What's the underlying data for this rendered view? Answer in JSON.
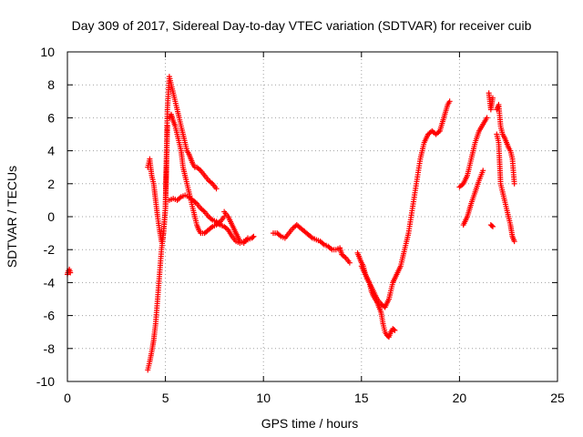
{
  "chart_data": {
    "type": "scatter",
    "title": "Day 309 of 2017, Sidereal Day-to-day VTEC variation (SDTVAR) for receiver cuib",
    "xlabel": "GPS time / hours",
    "ylabel": "SDTVAR / TECUs",
    "xlim": [
      0,
      25
    ],
    "ylim": [
      -10,
      10
    ],
    "xticks": [
      0,
      5,
      10,
      15,
      20,
      25
    ],
    "yticks": [
      -10,
      -8,
      -6,
      -4,
      -2,
      0,
      2,
      4,
      6,
      8,
      10
    ],
    "xtick_labels": [
      "0",
      "5",
      "10",
      "15",
      "20",
      "25"
    ],
    "ytick_labels": [
      "-10",
      "-8",
      "-6",
      "-4",
      "-2",
      "0",
      "2",
      "4",
      "6",
      "8",
      "10"
    ],
    "grid": true,
    "marker": "+",
    "color": "#ff0000",
    "series": [
      {
        "name": "s0",
        "x": [
          0.0,
          0.05,
          0.1,
          0.15
        ],
        "y": [
          -3.5,
          -3.3,
          -3.2,
          -3.4
        ]
      },
      {
        "name": "s1",
        "x": [
          4.1,
          4.2,
          4.3,
          4.4,
          4.5,
          4.6,
          4.7,
          4.8,
          4.9,
          5.0,
          5.1,
          5.2,
          5.3,
          5.4,
          5.5,
          5.6,
          5.7,
          5.8,
          5.9,
          6.0,
          6.1,
          6.2,
          6.3,
          6.4,
          6.5,
          6.6,
          6.8,
          7.0,
          7.2,
          7.4,
          7.6
        ],
        "y": [
          3.0,
          3.5,
          2.5,
          2.0,
          1.0,
          0.0,
          -0.8,
          -1.5,
          -1.0,
          0.5,
          6.5,
          8.5,
          8.0,
          7.5,
          7.0,
          6.5,
          6.0,
          5.5,
          5.0,
          4.5,
          4.0,
          3.8,
          3.5,
          3.2,
          3.0,
          3.0,
          2.8,
          2.5,
          2.2,
          2.0,
          1.7
        ]
      },
      {
        "name": "s2",
        "x": [
          4.1,
          4.2,
          4.3,
          4.4,
          4.5,
          4.6,
          4.7,
          4.8,
          4.9,
          5.0,
          5.05,
          5.1
        ],
        "y": [
          -9.3,
          -8.8,
          -8.2,
          -7.5,
          -6.5,
          -5.0,
          -3.5,
          -2.0,
          -1.0,
          0.5,
          3.0,
          5.5
        ]
      },
      {
        "name": "s3",
        "x": [
          5.2,
          5.3,
          5.4,
          5.5,
          5.6,
          5.7,
          5.8,
          5.9,
          6.0,
          6.1,
          6.2,
          6.3,
          6.4,
          6.5,
          6.6,
          6.7,
          6.8,
          7.0,
          7.2,
          7.4,
          7.6,
          7.8,
          8.0
        ],
        "y": [
          6.0,
          6.2,
          5.8,
          5.5,
          5.0,
          4.5,
          4.0,
          3.0,
          2.5,
          2.0,
          1.5,
          1.0,
          0.5,
          0.0,
          -0.5,
          -0.8,
          -1.0,
          -1.0,
          -0.8,
          -0.6,
          -0.5,
          -0.3,
          0.0
        ]
      },
      {
        "name": "s4",
        "x": [
          5.2,
          5.4,
          5.6,
          5.8,
          6.0,
          6.2,
          6.4,
          6.6,
          6.8,
          7.0,
          7.2,
          7.4,
          7.6,
          7.8,
          8.0,
          8.2,
          8.4,
          8.6,
          8.8,
          9.0,
          9.2,
          9.4,
          9.5
        ],
        "y": [
          1.0,
          1.1,
          1.0,
          1.2,
          1.3,
          1.2,
          1.0,
          0.8,
          0.5,
          0.3,
          0.0,
          -0.2,
          -0.3,
          -0.5,
          -0.6,
          -0.8,
          -1.2,
          -1.5,
          -1.6,
          -1.5,
          -1.4,
          -1.3,
          -1.2
        ]
      },
      {
        "name": "s5",
        "x": [
          8.0,
          8.2,
          8.4,
          8.6,
          8.8,
          9.0,
          9.2
        ],
        "y": [
          0.3,
          0.0,
          -0.5,
          -1.0,
          -1.5,
          -1.6,
          -1.3
        ]
      },
      {
        "name": "s6",
        "x": [
          10.5,
          10.7,
          10.9,
          11.1,
          11.3,
          11.5,
          11.7,
          11.9,
          12.1,
          12.3,
          12.5,
          12.7,
          12.9,
          13.1,
          13.3,
          13.5,
          13.7,
          13.9,
          14.0,
          14.2,
          14.4
        ],
        "y": [
          -1.0,
          -1.0,
          -1.2,
          -1.3,
          -1.0,
          -0.7,
          -0.5,
          -0.7,
          -0.9,
          -1.1,
          -1.3,
          -1.4,
          -1.5,
          -1.7,
          -1.8,
          -2.0,
          -2.0,
          -1.9,
          -2.3,
          -2.5,
          -2.8
        ]
      },
      {
        "name": "s7",
        "x": [
          14.8,
          14.9,
          15.0,
          15.1,
          15.2,
          15.3,
          15.4,
          15.5,
          15.6,
          15.7,
          15.8,
          15.9,
          16.0,
          16.1,
          16.2,
          16.3,
          16.4,
          16.5,
          16.6,
          16.7
        ],
        "y": [
          -2.2,
          -2.5,
          -2.8,
          -3.0,
          -3.5,
          -3.8,
          -4.0,
          -4.5,
          -4.8,
          -5.0,
          -5.2,
          -5.5,
          -5.8,
          -6.5,
          -7.0,
          -7.2,
          -7.3,
          -7.0,
          -6.8,
          -6.9
        ]
      },
      {
        "name": "s8",
        "x": [
          15.0,
          15.2,
          15.4,
          15.6,
          15.8,
          16.0,
          16.2,
          16.4,
          16.6,
          16.8,
          17.0,
          17.2,
          17.4,
          17.6,
          17.8,
          18.0,
          18.2,
          18.4,
          18.6,
          18.8,
          19.0,
          19.2,
          19.4,
          19.5
        ],
        "y": [
          -3.0,
          -3.5,
          -4.0,
          -4.5,
          -5.0,
          -5.3,
          -5.5,
          -5.0,
          -4.0,
          -3.5,
          -3.0,
          -2.0,
          -1.0,
          0.5,
          2.0,
          3.5,
          4.5,
          5.0,
          5.2,
          5.0,
          5.2,
          6.0,
          6.8,
          7.0
        ]
      },
      {
        "name": "s9",
        "x": [
          20.0,
          20.2,
          20.4,
          20.6,
          20.8,
          21.0,
          21.2,
          21.4
        ],
        "y": [
          1.8,
          2.0,
          2.5,
          3.5,
          4.5,
          5.2,
          5.6,
          6.0
        ]
      },
      {
        "name": "s10",
        "x": [
          20.2,
          20.4,
          20.6,
          20.8,
          21.0,
          21.2
        ],
        "y": [
          -0.5,
          0.0,
          0.8,
          1.5,
          2.2,
          2.8
        ]
      },
      {
        "name": "s11",
        "x": [
          21.5,
          21.6,
          21.7
        ],
        "y": [
          7.5,
          6.5,
          7.2
        ]
      },
      {
        "name": "s12",
        "x": [
          21.6,
          21.7
        ],
        "y": [
          -0.5,
          -0.6
        ]
      },
      {
        "name": "s13",
        "x": [
          21.9,
          22.0,
          22.1,
          22.2,
          22.3,
          22.4,
          22.5,
          22.6,
          22.7,
          22.8
        ],
        "y": [
          6.5,
          6.8,
          5.5,
          5.0,
          4.8,
          4.5,
          4.2,
          4.0,
          3.5,
          2.0
        ]
      },
      {
        "name": "s14",
        "x": [
          21.9,
          22.0,
          22.1,
          22.2,
          22.3,
          22.4,
          22.5,
          22.6,
          22.7,
          22.8
        ],
        "y": [
          5.0,
          4.5,
          2.0,
          1.5,
          1.0,
          0.5,
          0.0,
          -0.5,
          -1.2,
          -1.5
        ]
      }
    ]
  }
}
